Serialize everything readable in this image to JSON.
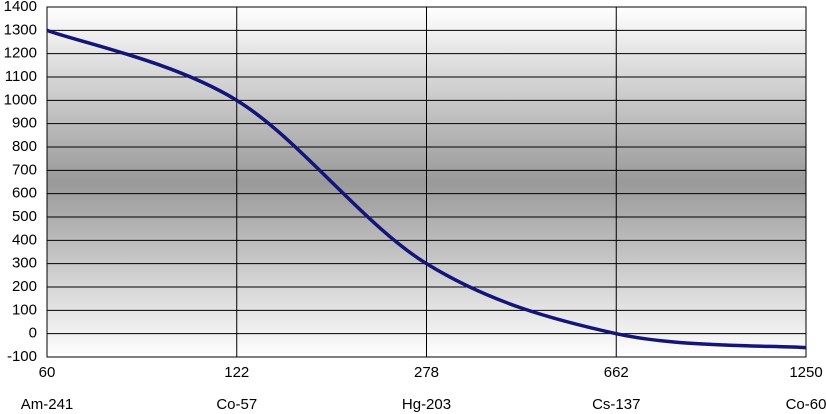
{
  "chart_data": {
    "type": "line",
    "categories": [
      "60",
      "122",
      "278",
      "662",
      "1250"
    ],
    "category_sublabels": [
      "Am-241",
      "Co-57",
      "Hg-203",
      "Cs-137",
      "Co-60"
    ],
    "values": [
      1300,
      1000,
      300,
      0,
      -60
    ],
    "color": "#14147a",
    "ylim": [
      -100,
      1400
    ],
    "yticks": [
      -100,
      0,
      100,
      200,
      300,
      400,
      500,
      600,
      700,
      800,
      900,
      1000,
      1100,
      1200,
      1300,
      1400
    ],
    "grid": true,
    "smooth": true
  }
}
